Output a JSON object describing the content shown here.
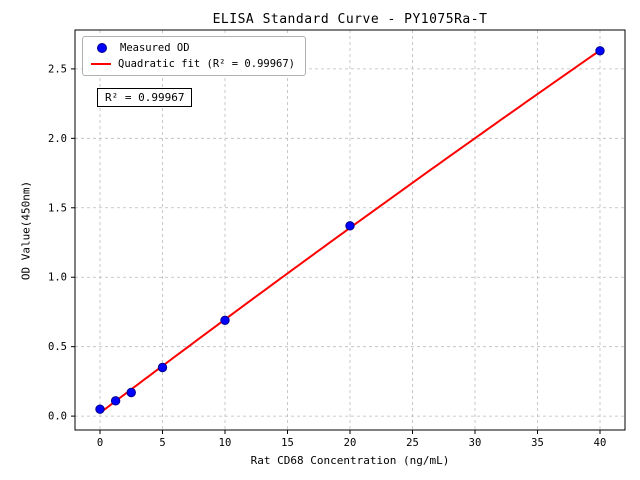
{
  "chart_data": {
    "type": "scatter",
    "title": "ELISA Standard Curve - PY1075Ra-T",
    "xlabel": "Rat CD68 Concentration (ng/mL)",
    "ylabel": "OD Value(450nm)",
    "xlim": [
      -2,
      42
    ],
    "ylim": [
      -0.1,
      2.78
    ],
    "grid": true,
    "legend_position": "upper-left",
    "x_ticks": [
      0,
      5,
      10,
      15,
      20,
      25,
      30,
      35,
      40
    ],
    "x_tick_labels": [
      "0",
      "5",
      "10",
      "15",
      "20",
      "25",
      "30",
      "35",
      "40"
    ],
    "y_ticks": [
      0.0,
      0.5,
      1.0,
      1.5,
      2.0,
      2.5
    ],
    "y_tick_labels": [
      "0.0",
      "0.5",
      "1.0",
      "1.5",
      "2.0",
      "2.5"
    ],
    "series": [
      {
        "name": "Measured OD",
        "type": "scatter",
        "color": "#0000ff",
        "edge_color": "#00008b",
        "x": [
          0,
          1.25,
          2.5,
          5,
          10,
          20,
          40
        ],
        "y": [
          0.05,
          0.11,
          0.17,
          0.35,
          0.69,
          1.37,
          2.63
        ]
      },
      {
        "name": "Quadratic fit (R² = 0.99967)",
        "type": "line",
        "color": "#ff0000"
      }
    ],
    "annotation": "R² = 0.99967",
    "grid_color": "#bbbbbb",
    "axis_color": "#000000"
  }
}
